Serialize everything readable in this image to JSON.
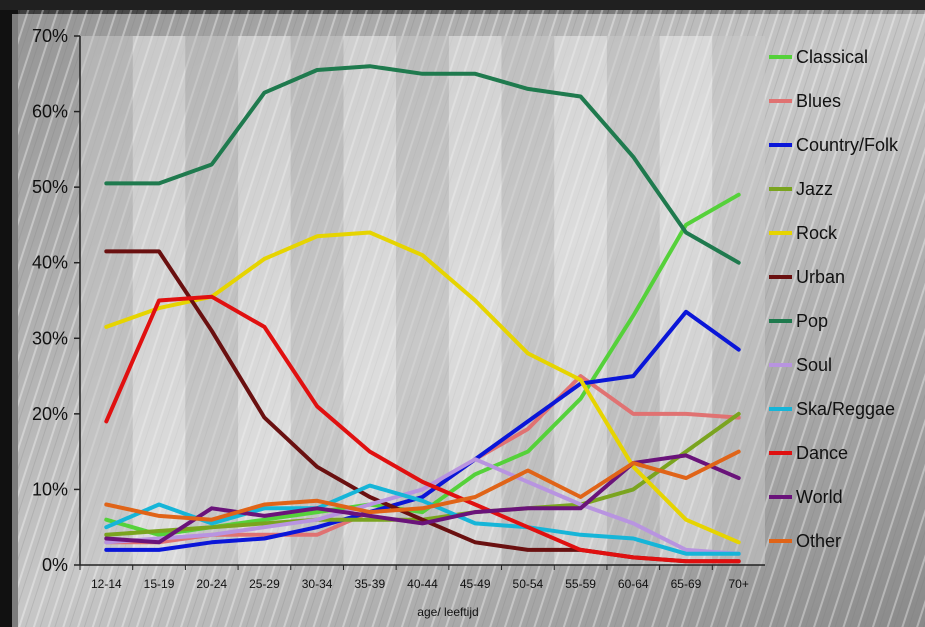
{
  "chart_data": {
    "type": "line",
    "title": "",
    "xlabel": "age/ leeftijd",
    "ylabel": "",
    "ylim": [
      0,
      70
    ],
    "yticks": [
      0,
      10,
      20,
      30,
      40,
      50,
      60,
      70
    ],
    "ytick_labels": [
      "0%",
      "10%",
      "20%",
      "30%",
      "40%",
      "50%",
      "60%",
      "70%"
    ],
    "grid": "alternating vertical bands",
    "legend_position": "right",
    "categories": [
      "12-14",
      "15-19",
      "20-24",
      "25-29",
      "30-34",
      "35-39",
      "40-44",
      "45-49",
      "50-54",
      "55-59",
      "60-64",
      "65-69",
      "70+"
    ],
    "series": [
      {
        "name": "Classical",
        "color": "#55d13a",
        "values": [
          6,
          4,
          5,
          6,
          7,
          8,
          7,
          12,
          15,
          22,
          33,
          45,
          49
        ]
      },
      {
        "name": "Blues",
        "color": "#e07272",
        "values": [
          3,
          3,
          4,
          4,
          4,
          7,
          9,
          14,
          18,
          25,
          20,
          20,
          19.5
        ]
      },
      {
        "name": "Country/Folk",
        "color": "#0a16d8",
        "values": [
          2,
          2,
          3,
          3.5,
          5,
          7,
          9,
          14,
          19,
          24,
          25,
          33.5,
          28.5
        ]
      },
      {
        "name": "Jazz",
        "color": "#7aa41f",
        "values": [
          4,
          4.5,
          5,
          5.5,
          6,
          6,
          6,
          7,
          7.5,
          8,
          10,
          15,
          20
        ]
      },
      {
        "name": "Rock",
        "color": "#e6d400",
        "values": [
          31.5,
          34,
          35.5,
          40.5,
          43.5,
          44,
          41,
          35,
          28,
          24.5,
          13,
          6,
          3
        ]
      },
      {
        "name": "Urban",
        "color": "#6a1010",
        "values": [
          41.5,
          41.5,
          31,
          19.5,
          13,
          9,
          6,
          3,
          2,
          2,
          1,
          0.5,
          0.5
        ]
      },
      {
        "name": "Pop",
        "color": "#1f7a4e",
        "values": [
          50.5,
          50.5,
          53,
          62.5,
          65.5,
          66,
          65,
          65,
          63,
          62,
          54,
          44,
          40
        ]
      },
      {
        "name": "Soul",
        "color": "#b894e0",
        "values": [
          3,
          3.5,
          4,
          5,
          6,
          8,
          10,
          14,
          11,
          8,
          5.5,
          2,
          1.5
        ]
      },
      {
        "name": "Ska/Reggae",
        "color": "#16b5d8",
        "values": [
          5,
          8,
          5.5,
          7.5,
          7.5,
          10.5,
          8.5,
          5.5,
          5,
          4,
          3.5,
          1.5,
          1.5
        ]
      },
      {
        "name": "Dance",
        "color": "#e01010",
        "values": [
          19,
          35,
          35.5,
          31.5,
          21,
          15,
          11,
          8,
          5,
          2,
          1,
          0.5,
          0.5
        ]
      },
      {
        "name": "World",
        "color": "#6a137a",
        "values": [
          3.5,
          3,
          7.5,
          6.5,
          7.5,
          6.5,
          5.5,
          7,
          7.5,
          7.5,
          13.5,
          14.5,
          11.5
        ]
      },
      {
        "name": "Other",
        "color": "#e06418",
        "values": [
          8,
          6.5,
          6,
          8,
          8.5,
          7,
          7.5,
          9,
          12.5,
          9,
          13.5,
          11.5,
          15
        ]
      }
    ]
  }
}
